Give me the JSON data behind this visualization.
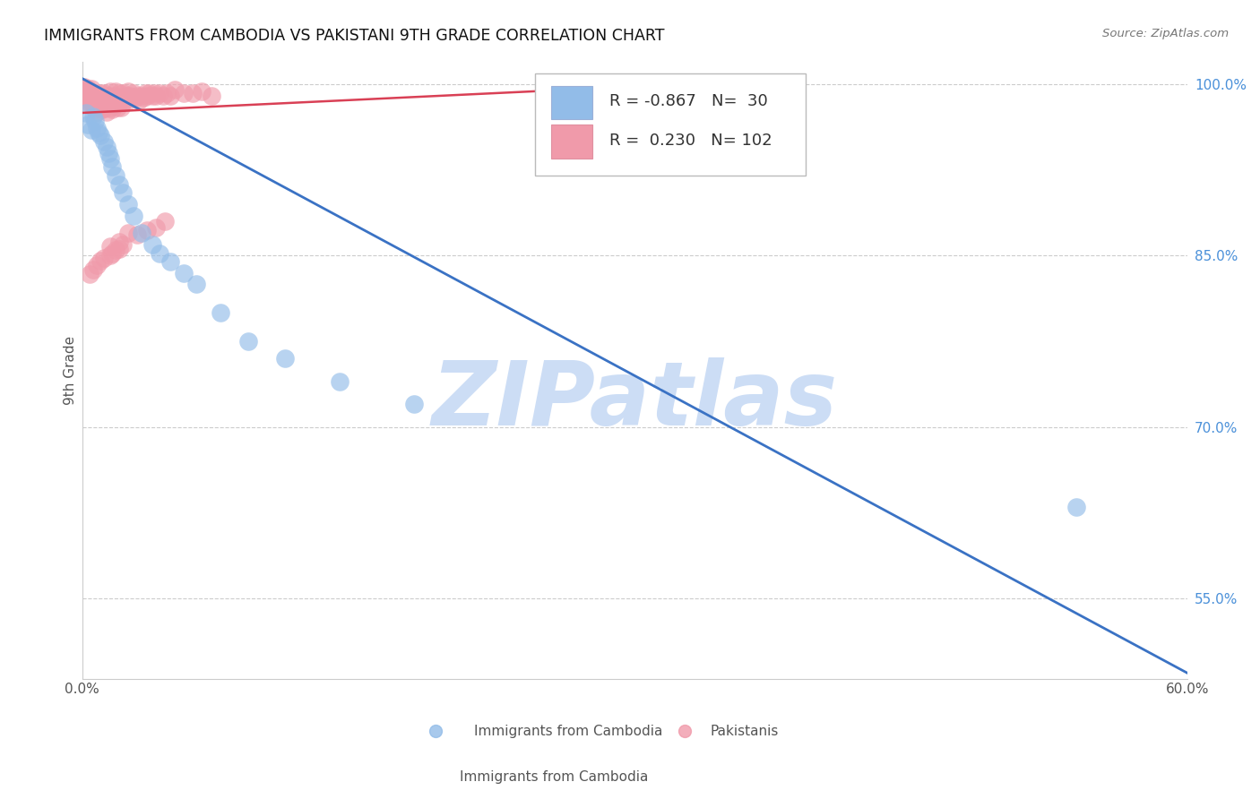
{
  "title": "IMMIGRANTS FROM CAMBODIA VS PAKISTANI 9TH GRADE CORRELATION CHART",
  "source": "Source: ZipAtlas.com",
  "ylabel": "9th Grade",
  "xlim": [
    0.0,
    0.6
  ],
  "ylim": [
    0.48,
    1.02
  ],
  "blue_color": "#92bce8",
  "pink_color": "#f09aaa",
  "blue_line_color": "#3a72c4",
  "pink_line_color": "#d94055",
  "watermark": "ZIPatlas",
  "watermark_color": "#ccddf5",
  "grid_color": "#cccccc",
  "legend_blue_r": "-0.867",
  "legend_blue_n": "30",
  "legend_pink_r": "0.230",
  "legend_pink_n": "102",
  "ytick_positions": [
    0.55,
    0.7,
    0.85,
    1.0
  ],
  "ytick_labels": [
    "55.0%",
    "70.0%",
    "85.0%",
    "100.0%"
  ],
  "blue_scatter_x": [
    0.002,
    0.003,
    0.005,
    0.006,
    0.007,
    0.008,
    0.009,
    0.01,
    0.012,
    0.013,
    0.014,
    0.015,
    0.016,
    0.018,
    0.02,
    0.022,
    0.025,
    0.028,
    0.032,
    0.038,
    0.042,
    0.048,
    0.055,
    0.062,
    0.075,
    0.09,
    0.11,
    0.14,
    0.18,
    0.54
  ],
  "blue_scatter_y": [
    0.975,
    0.965,
    0.96,
    0.972,
    0.968,
    0.962,
    0.958,
    0.955,
    0.95,
    0.945,
    0.94,
    0.935,
    0.928,
    0.92,
    0.912,
    0.905,
    0.895,
    0.885,
    0.87,
    0.86,
    0.852,
    0.845,
    0.835,
    0.825,
    0.8,
    0.775,
    0.76,
    0.74,
    0.72,
    0.63
  ],
  "pink_scatter_x": [
    0.001,
    0.001,
    0.001,
    0.002,
    0.002,
    0.002,
    0.003,
    0.003,
    0.003,
    0.004,
    0.004,
    0.004,
    0.004,
    0.005,
    0.005,
    0.005,
    0.005,
    0.006,
    0.006,
    0.006,
    0.007,
    0.007,
    0.007,
    0.008,
    0.008,
    0.008,
    0.009,
    0.009,
    0.01,
    0.01,
    0.01,
    0.01,
    0.011,
    0.011,
    0.012,
    0.012,
    0.012,
    0.013,
    0.013,
    0.014,
    0.014,
    0.015,
    0.015,
    0.015,
    0.016,
    0.016,
    0.017,
    0.017,
    0.018,
    0.018,
    0.019,
    0.019,
    0.02,
    0.02,
    0.021,
    0.021,
    0.022,
    0.022,
    0.023,
    0.024,
    0.025,
    0.025,
    0.026,
    0.027,
    0.028,
    0.029,
    0.03,
    0.031,
    0.032,
    0.033,
    0.034,
    0.035,
    0.036,
    0.038,
    0.039,
    0.04,
    0.042,
    0.044,
    0.046,
    0.048,
    0.05,
    0.055,
    0.06,
    0.065,
    0.07,
    0.015,
    0.02,
    0.025,
    0.018,
    0.022,
    0.016,
    0.012,
    0.03,
    0.035,
    0.04,
    0.045,
    0.02,
    0.015,
    0.01,
    0.008,
    0.006,
    0.004
  ],
  "pink_scatter_y": [
    0.992,
    0.996,
    0.998,
    0.99,
    0.994,
    0.988,
    0.992,
    0.996,
    0.985,
    0.99,
    0.994,
    0.988,
    0.983,
    0.992,
    0.988,
    0.996,
    0.984,
    0.99,
    0.985,
    0.98,
    0.992,
    0.986,
    0.978,
    0.99,
    0.984,
    0.976,
    0.988,
    0.982,
    0.992,
    0.988,
    0.984,
    0.98,
    0.986,
    0.978,
    0.992,
    0.986,
    0.979,
    0.984,
    0.976,
    0.99,
    0.982,
    0.994,
    0.988,
    0.98,
    0.986,
    0.978,
    0.99,
    0.982,
    0.994,
    0.986,
    0.988,
    0.98,
    0.992,
    0.984,
    0.988,
    0.98,
    0.992,
    0.984,
    0.988,
    0.99,
    0.994,
    0.986,
    0.99,
    0.988,
    0.992,
    0.988,
    0.99,
    0.986,
    0.99,
    0.988,
    0.992,
    0.99,
    0.992,
    0.99,
    0.992,
    0.99,
    0.992,
    0.99,
    0.992,
    0.99,
    0.995,
    0.992,
    0.992,
    0.994,
    0.99,
    0.858,
    0.862,
    0.87,
    0.855,
    0.86,
    0.852,
    0.848,
    0.868,
    0.872,
    0.875,
    0.88,
    0.856,
    0.85,
    0.846,
    0.842,
    0.838,
    0.834
  ]
}
